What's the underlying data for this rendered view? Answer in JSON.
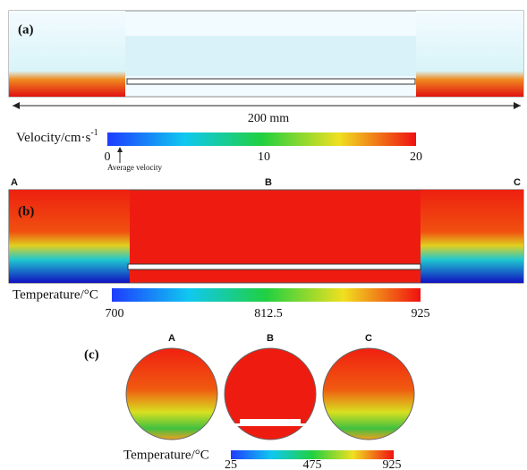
{
  "panel_a": {
    "label": "(a)",
    "scale": "200 mm"
  },
  "velocity_bar": {
    "title": "Velocity/cm·s",
    "title_sup": "-1",
    "ticks": [
      "0",
      "10",
      "20"
    ],
    "note": "Average velocity"
  },
  "panel_b": {
    "label": "(b)",
    "positions": [
      "A",
      "B",
      "C"
    ]
  },
  "temperature_bar": {
    "title": "Temperature/°C",
    "ticks": [
      "700",
      "812.5",
      "925"
    ]
  },
  "panel_c": {
    "label": "(c)",
    "sections": [
      "A",
      "B",
      "C"
    ]
  },
  "section_bar": {
    "title": "Temperature/°C",
    "ticks": [
      "25",
      "475",
      "925"
    ]
  }
}
